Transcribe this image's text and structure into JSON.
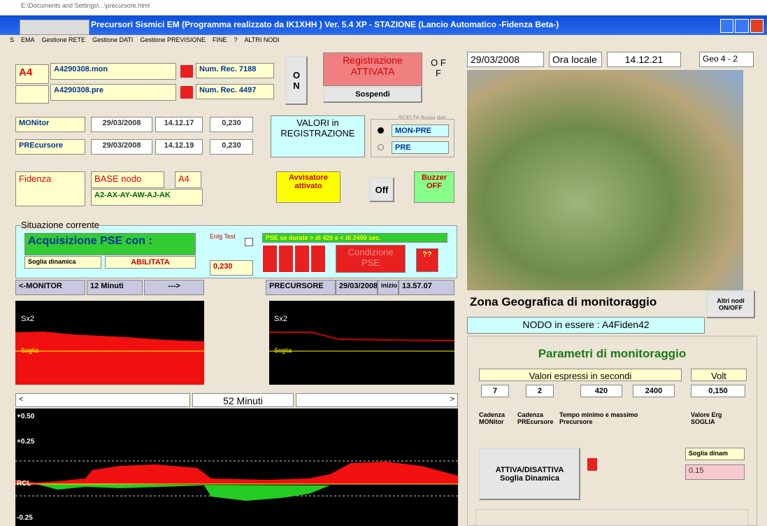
{
  "window": {
    "path": "E:\\Documents and Settings\\...\\precursore.html",
    "title": "Precursori Sismici EM (Programma realizzato da IK1XHH ) Ver. 5.4 XP - STAZIONE  (Lancio Automatico -Fidenza Beta-)",
    "menu": [
      "S",
      "EMA",
      "Gestione RETE",
      "Gestione DATI",
      "Gestione PREVISIONE",
      "FINE",
      "?",
      "ALTRI NODI"
    ]
  },
  "files": {
    "node": "A4",
    "mon_file": "A4290308.mon",
    "mon_rec": "Num. Rec. 7188",
    "pre_file": "A4290308.pre",
    "pre_rec": "Num. Rec. 4497"
  },
  "recording": {
    "on": "O N",
    "status": "Registrazione ATTIVATA",
    "suspend": "Sospendi",
    "off": "O F F"
  },
  "values": {
    "rows": [
      [
        "MONitor",
        "29/03/2008",
        "14.12.17",
        "0,230"
      ],
      [
        "PREcursore",
        "29/03/2008",
        "14.12.19",
        "0,230"
      ]
    ],
    "caption": "VALORI in REGISTRAZIONE",
    "choice_title": "SCELTA flusso dati",
    "choices": [
      "MON-PRE",
      "PRE"
    ]
  },
  "node": {
    "place": "Fidenza",
    "base": "BASE nodo",
    "base_id": "A4",
    "neighbours": "A2-AX-AY-AW-AJ-AK",
    "alarm": "Avvisatore attivato",
    "off": "Off",
    "buzzer": "Buzzer OFF"
  },
  "situation": {
    "title": "Situazione corrente",
    "acquisition": "Acquisizione PSE con :",
    "threshold": "Soglia dinamica",
    "enabled": "ABILITATA",
    "test": "Enlg Test",
    "test_value": "0,230",
    "pse_rule": "PSE se durate > di 420 e < di 2400 sec.",
    "condition": "Condizione PSE",
    "flag": "??"
  },
  "monitor": {
    "left": "<-MONITOR",
    "minutes": "12 Minuti",
    "arrow": "--->",
    "pre": "PRECURSORE",
    "pre_date": "29/03/2008",
    "start": "inizio",
    "start_time": "13.57.07",
    "sx": "Sx2",
    "soglia": "Soglia"
  },
  "history": {
    "left": "<",
    "minutes": "52 Minuti",
    "right": ">",
    "ticks": [
      "+0.50",
      "+0.25",
      "RCL",
      "-0.25"
    ]
  },
  "geo": {
    "date": "29/03/2008",
    "local": "Ora locale",
    "time": "14.12.21",
    "geo": "Geo 4 - 2",
    "zone": "Zona Geografica di monitoraggio",
    "other": "Altri nodi ON/OFF",
    "current": "NODO in essere :  A4Fiden42"
  },
  "params": {
    "title": "Parametri di monitoraggio",
    "seconds": "Valori espressi in secondi",
    "volt": "Volt",
    "values": [
      "7",
      "2",
      "420",
      "2400",
      "0,150"
    ],
    "labels": [
      "Cadenza MONitor",
      "Cadenza PREcursore",
      "Tempo minimo e massimo Precursore",
      "Valore Erg SOGLIA"
    ],
    "dyn_label": "Soglia dinam",
    "dyn_value": "0.15",
    "toggle": "ATTIVA/DISATTIVA Soglia Dinamica"
  }
}
